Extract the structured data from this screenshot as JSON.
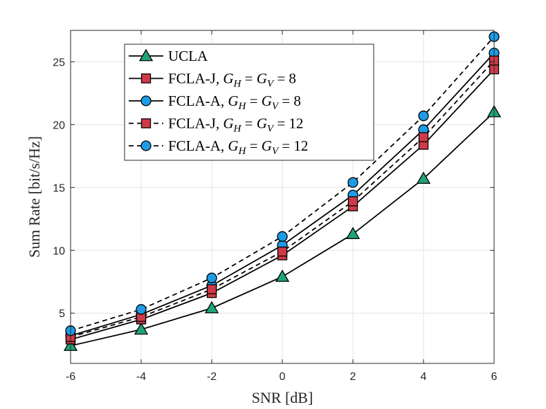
{
  "chart_data": {
    "type": "line",
    "title": "",
    "xlabel": "SNR [dB]",
    "ylabel": "Sum Rate [bit/s/Hz]",
    "xlim": [
      -6,
      6
    ],
    "ylim": [
      1.0,
      27.5
    ],
    "xticks": [
      -6,
      -4,
      -2,
      0,
      2,
      4,
      6
    ],
    "xtick_labels": [
      "-6",
      "-4",
      "-2",
      "0",
      "2",
      "4",
      "6"
    ],
    "yticks": [
      5,
      10,
      15,
      20,
      25
    ],
    "ytick_labels": [
      "5",
      "10",
      "15",
      "20",
      "25"
    ],
    "grid": true,
    "legend_position": "top-left",
    "x": [
      -6,
      -4,
      -2,
      0,
      2,
      4,
      6
    ],
    "series": [
      {
        "name": "UCLA",
        "legend": {
          "prefix": "UCLA",
          "math": ""
        },
        "line": "solid",
        "marker": "triangle",
        "color": "#20a37a",
        "values": [
          2.4,
          3.7,
          5.4,
          7.9,
          11.3,
          15.7,
          21.0
        ]
      },
      {
        "name": "FCLA-J, G_H = G_V = 8",
        "legend": {
          "prefix": "FCLA-J, ",
          "math": "G",
          "sub1": "H",
          "mid": " = ",
          "math2": "G",
          "sub2": "V",
          "suffix": " = 8"
        },
        "line": "solid",
        "marker": "square",
        "color": "#d03a48",
        "values": [
          2.9,
          4.5,
          6.6,
          9.6,
          13.5,
          18.4,
          24.4
        ]
      },
      {
        "name": "FCLA-A, G_H = G_V = 8",
        "legend": {
          "prefix": "FCLA-A, ",
          "math": "G",
          "sub1": "H",
          "mid": " = ",
          "math2": "G",
          "sub2": "V",
          "suffix": " = 8"
        },
        "line": "solid",
        "marker": "circle",
        "color": "#1c9ce6",
        "values": [
          3.2,
          4.9,
          7.2,
          10.4,
          14.4,
          19.6,
          25.7
        ]
      },
      {
        "name": "FCLA-J, G_H = G_V = 12",
        "legend": {
          "prefix": "FCLA-J, ",
          "math": "G",
          "sub1": "H",
          "mid": " = ",
          "math2": "G",
          "sub2": "V",
          "suffix": " = 12"
        },
        "line": "dashed",
        "marker": "square",
        "color": "#d03a48",
        "values": [
          3.1,
          4.7,
          6.9,
          9.9,
          13.9,
          19.0,
          25.1
        ]
      },
      {
        "name": "FCLA-A, G_H = G_V = 12",
        "legend": {
          "prefix": "FCLA-A, ",
          "math": "G",
          "sub1": "H",
          "mid": " = ",
          "math2": "G",
          "sub2": "V",
          "suffix": " = 12"
        },
        "line": "dashed",
        "marker": "circle",
        "color": "#1c9ce6",
        "values": [
          3.6,
          5.3,
          7.8,
          11.1,
          15.4,
          20.7,
          27.0
        ]
      }
    ]
  }
}
